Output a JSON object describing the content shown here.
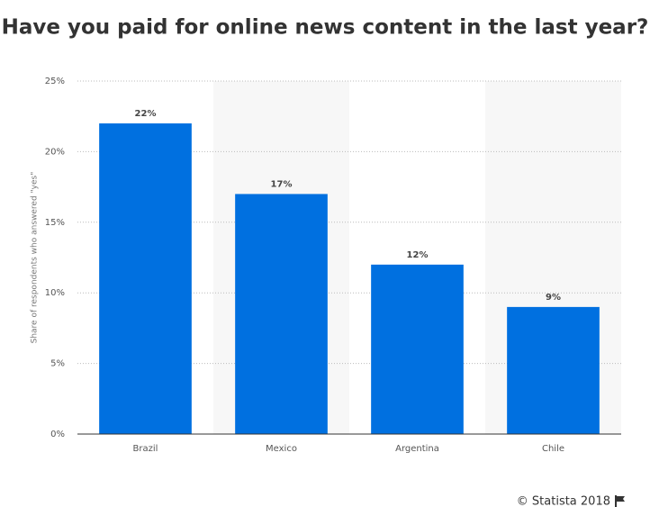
{
  "chart_data": {
    "type": "bar",
    "title": "Have you paid for online news content in the last year?",
    "y_label": "Share of respondents who answered \"yes\"",
    "categories": [
      "Brazil",
      "Mexico",
      "Argentina",
      "Chile"
    ],
    "values": [
      22,
      17,
      12,
      9
    ],
    "value_labels": [
      "22%",
      "17%",
      "12%",
      "9%"
    ],
    "color": "#0070e0",
    "ylim": [
      0,
      25
    ],
    "yticks": [
      {
        "value": 0,
        "label": "0%"
      },
      {
        "value": 5,
        "label": "5%"
      },
      {
        "value": 10,
        "label": "10%"
      },
      {
        "value": 15,
        "label": "15%"
      },
      {
        "value": 20,
        "label": "20%"
      },
      {
        "value": 25,
        "label": "25%"
      }
    ],
    "grid": true,
    "source": "© Statista 2018"
  }
}
